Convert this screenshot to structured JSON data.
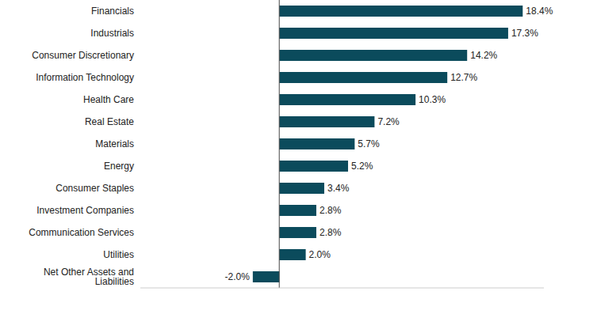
{
  "chart_data": {
    "type": "bar",
    "orientation": "horizontal",
    "categories": [
      "Financials",
      "Industrials",
      "Consumer Discretionary",
      "Information Technology",
      "Health Care",
      "Real Estate",
      "Materials",
      "Energy",
      "Consumer Staples",
      "Investment Companies",
      "Communication Services",
      "Utilities",
      "Net Other Assets and Liabilities"
    ],
    "values": [
      18.4,
      17.3,
      14.2,
      12.7,
      10.3,
      7.2,
      5.7,
      5.2,
      3.4,
      2.8,
      2.8,
      2.0,
      -2.0
    ],
    "value_labels": [
      "18.4%",
      "17.3%",
      "14.2%",
      "12.7%",
      "10.3%",
      "7.2%",
      "5.7%",
      "5.2%",
      "3.4%",
      "2.8%",
      "2.8%",
      "2.0%",
      "-2.0%"
    ],
    "color": "#0b4b5c",
    "xlim": [
      -10.5,
      20
    ],
    "xticks": [
      0
    ],
    "grid": true,
    "data_labels": true,
    "tick_labels": "y"
  }
}
